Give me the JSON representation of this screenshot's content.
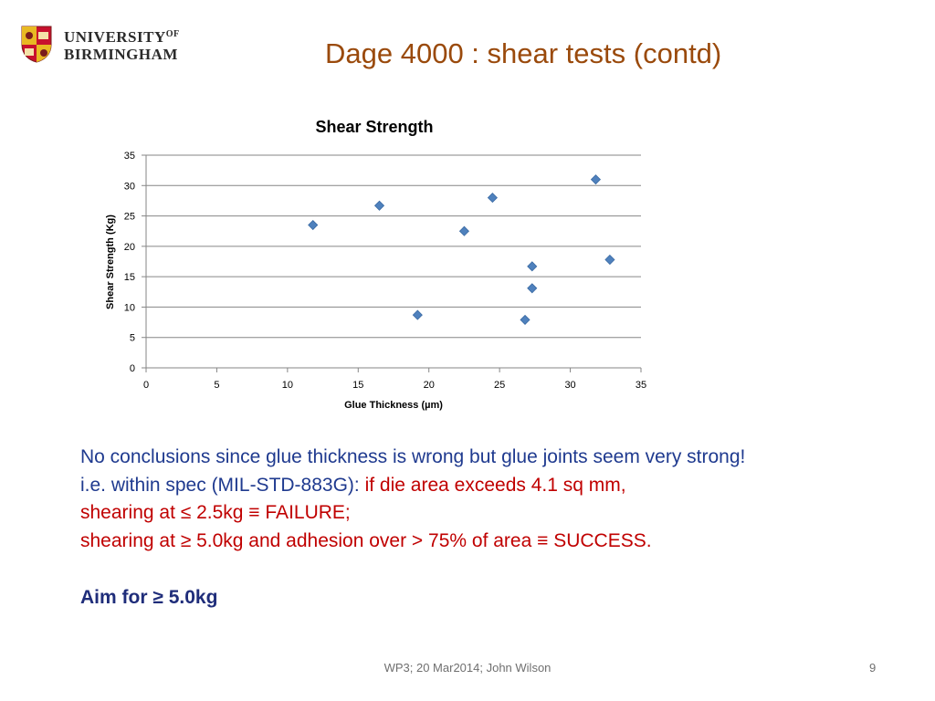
{
  "logo": {
    "line1": "UNIVERSITY",
    "line1_of": "OF",
    "line2": "BIRMINGHAM"
  },
  "slide_title": "Dage 4000 : shear tests (contd)",
  "chart_data": {
    "type": "scatter",
    "title": "Shear Strength",
    "xlabel": "Glue Thickness (µm)",
    "ylabel": "Shear Strength (Kg)",
    "xlim": [
      0,
      35
    ],
    "ylim": [
      0,
      35
    ],
    "xticks": [
      0,
      5,
      10,
      15,
      20,
      25,
      30,
      35
    ],
    "yticks": [
      0,
      5,
      10,
      15,
      20,
      25,
      30,
      35
    ],
    "grid": "horizontal",
    "series": [
      {
        "points": [
          [
            11.8,
            23.5
          ],
          [
            16.5,
            26.7
          ],
          [
            19.2,
            8.7
          ],
          [
            22.5,
            22.5
          ],
          [
            24.5,
            28.0
          ],
          [
            26.8,
            7.9
          ],
          [
            27.3,
            16.7
          ],
          [
            27.3,
            13.1
          ],
          [
            31.8,
            31.0
          ],
          [
            32.8,
            17.8
          ]
        ]
      }
    ],
    "marker_color": "#4f81bd"
  },
  "body": {
    "line1": "No conclusions since glue thickness is wrong but glue joints seem very strong!",
    "line2_blue": "i.e.  within spec (MIL-STD-883G): ",
    "line2_red": "if die area exceeds 4.1 sq mm,",
    "line3": "shearing at ≤ 2.5kg    ≡  FAILURE;",
    "line4": "shearing at ≥ 5.0kg and adhesion over > 75% of area  ≡ SUCCESS.",
    "aim": "Aim for ≥ 5.0kg"
  },
  "footer": {
    "center": "WP3; 20 Mar2014; John Wilson",
    "page_number": "9"
  }
}
